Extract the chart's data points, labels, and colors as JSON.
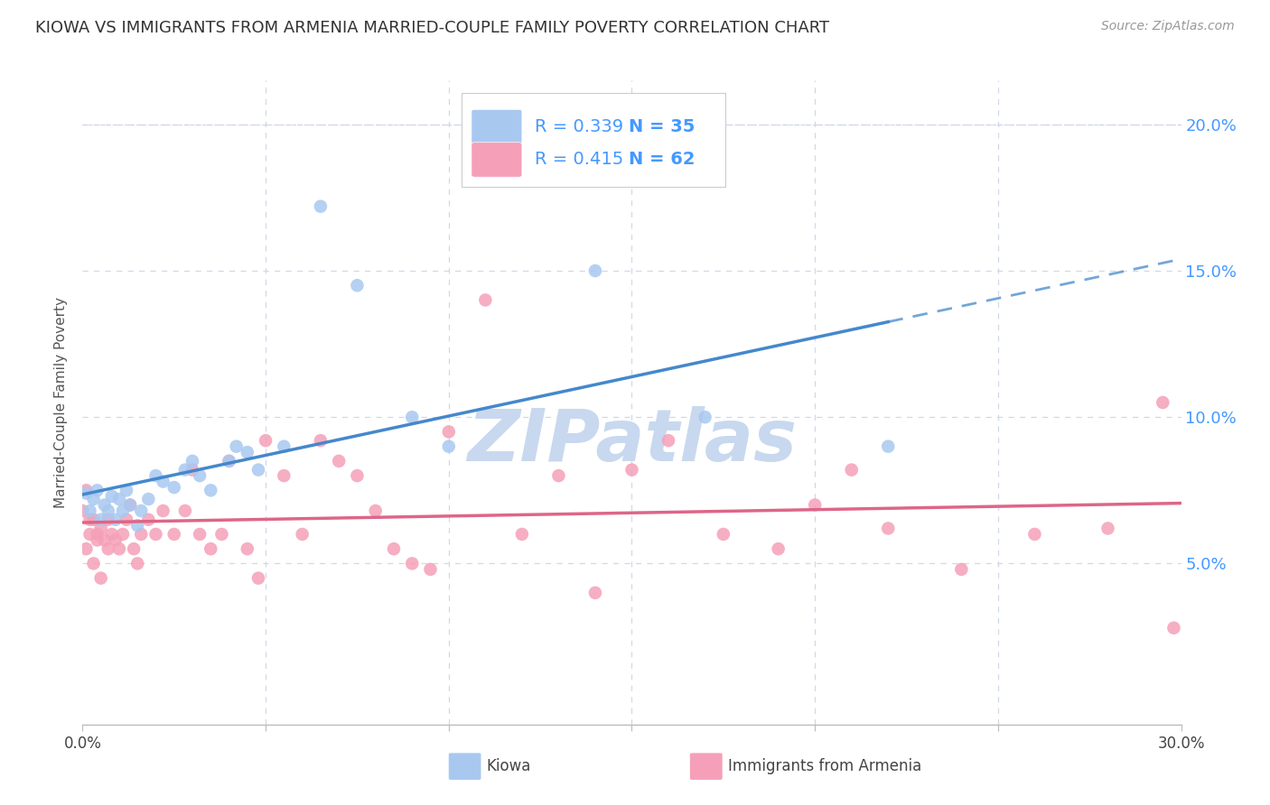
{
  "title": "KIOWA VS IMMIGRANTS FROM ARMENIA MARRIED-COUPLE FAMILY POVERTY CORRELATION CHART",
  "source": "Source: ZipAtlas.com",
  "ylabel": "Married-Couple Family Poverty",
  "xlim": [
    0.0,
    0.3
  ],
  "ylim": [
    -0.005,
    0.215
  ],
  "background_color": "#ffffff",
  "kiowa_color": "#a8c8f0",
  "armenia_color": "#f5a0b8",
  "kiowa_line_color": "#4488cc",
  "armenia_line_color": "#dd6688",
  "grid_color": "#d0d8e8",
  "kiowa_R": 0.339,
  "kiowa_N": 35,
  "armenia_R": 0.415,
  "armenia_N": 62,
  "legend_color": "#4499ff",
  "watermark_color": "#c8d8ef",
  "kiowa_x": [
    0.001,
    0.002,
    0.003,
    0.004,
    0.005,
    0.006,
    0.007,
    0.008,
    0.009,
    0.01,
    0.011,
    0.012,
    0.013,
    0.015,
    0.016,
    0.018,
    0.02,
    0.022,
    0.025,
    0.028,
    0.03,
    0.032,
    0.035,
    0.04,
    0.042,
    0.045,
    0.048,
    0.055,
    0.065,
    0.075,
    0.09,
    0.1,
    0.14,
    0.17,
    0.22
  ],
  "kiowa_y": [
    0.074,
    0.068,
    0.072,
    0.075,
    0.065,
    0.07,
    0.068,
    0.073,
    0.065,
    0.072,
    0.068,
    0.075,
    0.07,
    0.063,
    0.068,
    0.072,
    0.08,
    0.078,
    0.076,
    0.082,
    0.085,
    0.08,
    0.075,
    0.085,
    0.09,
    0.088,
    0.082,
    0.09,
    0.172,
    0.145,
    0.1,
    0.09,
    0.15,
    0.1,
    0.09
  ],
  "armenia_x": [
    0.0,
    0.001,
    0.001,
    0.002,
    0.002,
    0.003,
    0.003,
    0.004,
    0.004,
    0.005,
    0.005,
    0.006,
    0.007,
    0.007,
    0.008,
    0.009,
    0.01,
    0.011,
    0.012,
    0.013,
    0.014,
    0.015,
    0.016,
    0.018,
    0.02,
    0.022,
    0.025,
    0.028,
    0.03,
    0.032,
    0.035,
    0.038,
    0.04,
    0.045,
    0.048,
    0.05,
    0.055,
    0.06,
    0.065,
    0.07,
    0.075,
    0.08,
    0.085,
    0.09,
    0.095,
    0.1,
    0.11,
    0.12,
    0.13,
    0.14,
    0.15,
    0.16,
    0.175,
    0.19,
    0.2,
    0.21,
    0.22,
    0.24,
    0.26,
    0.28,
    0.295,
    0.298
  ],
  "armenia_y": [
    0.068,
    0.055,
    0.075,
    0.06,
    0.065,
    0.05,
    0.065,
    0.058,
    0.06,
    0.045,
    0.062,
    0.058,
    0.065,
    0.055,
    0.06,
    0.058,
    0.055,
    0.06,
    0.065,
    0.07,
    0.055,
    0.05,
    0.06,
    0.065,
    0.06,
    0.068,
    0.06,
    0.068,
    0.082,
    0.06,
    0.055,
    0.06,
    0.085,
    0.055,
    0.045,
    0.092,
    0.08,
    0.06,
    0.092,
    0.085,
    0.08,
    0.068,
    0.055,
    0.05,
    0.048,
    0.095,
    0.14,
    0.06,
    0.08,
    0.04,
    0.082,
    0.092,
    0.06,
    0.055,
    0.07,
    0.082,
    0.062,
    0.048,
    0.06,
    0.062,
    0.105,
    0.028
  ]
}
